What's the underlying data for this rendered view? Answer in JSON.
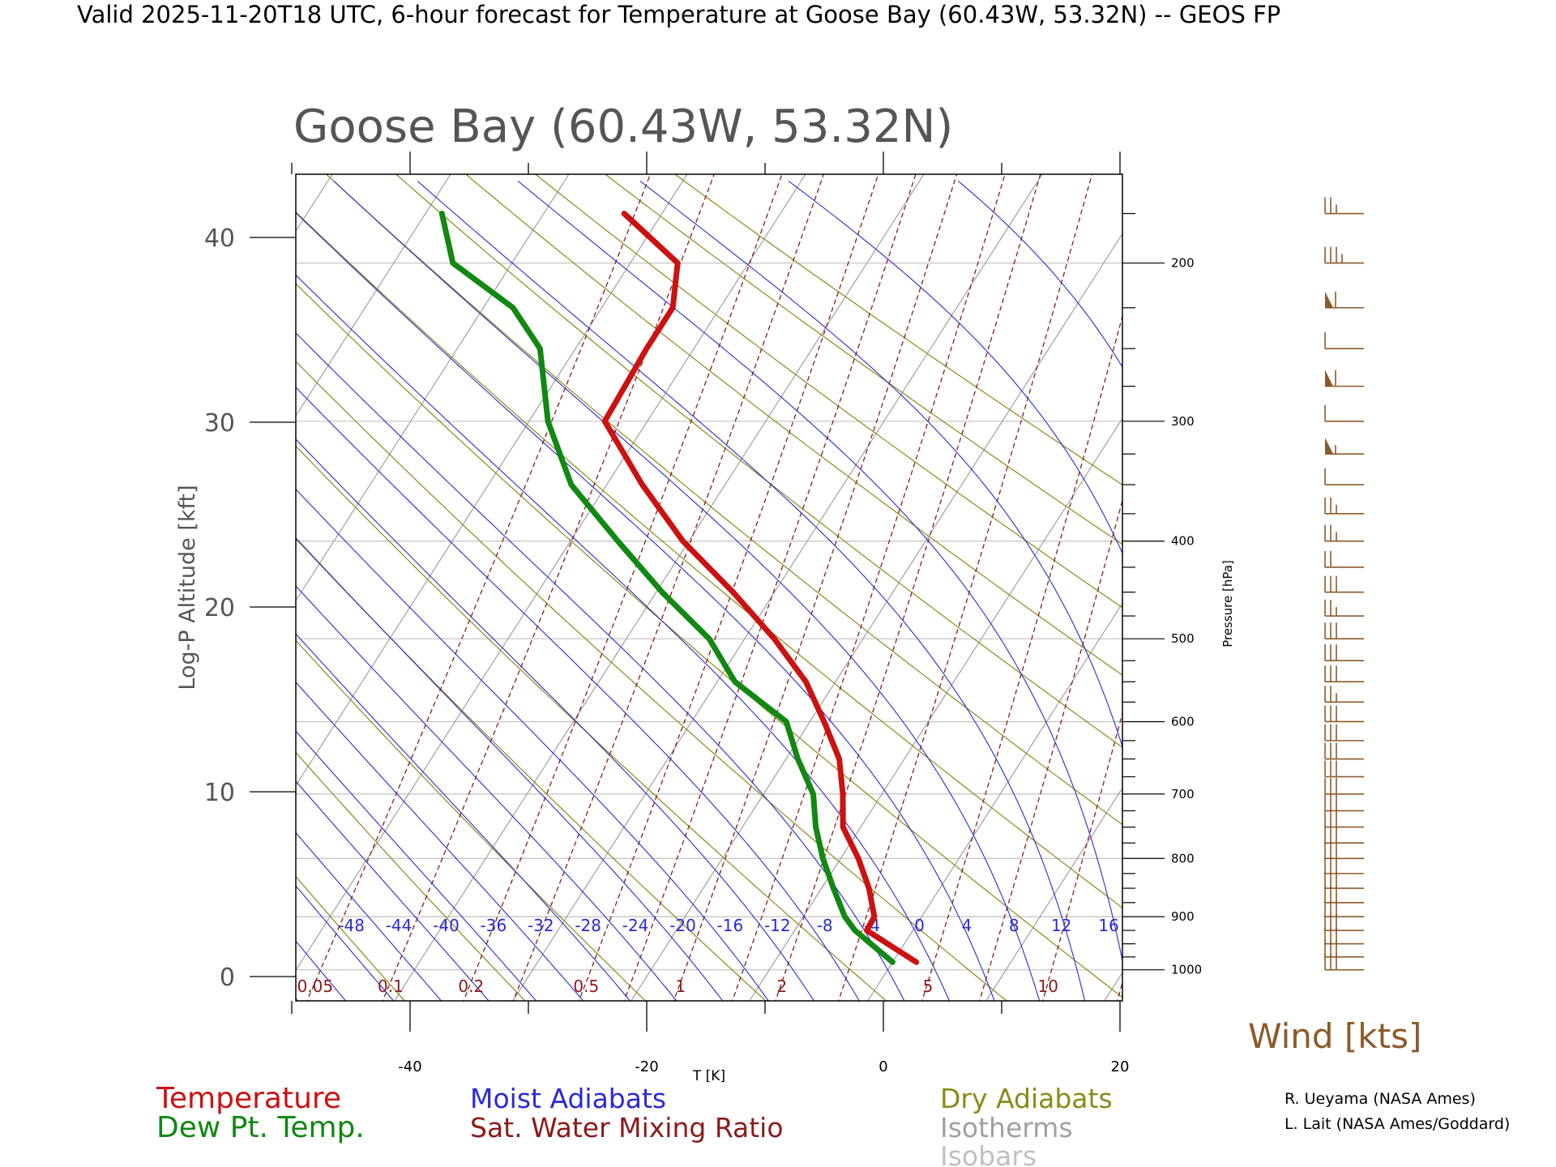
{
  "header": {
    "valid_title": "Valid 2025-11-20T18 UTC, 6-hour forecast for Temperature at Goose Bay (60.43W, 53.32N) -- GEOS FP",
    "station_title": "Goose Bay (60.43W, 53.32N)"
  },
  "colors": {
    "temperature": "#cc1111",
    "dewpoint": "#118811",
    "moist_adiabat": "#2a2ad6",
    "mixing_ratio": "#8b1a1a",
    "dry_adiabat": "#8a8a1a",
    "isotherm": "#a0a0a0",
    "isobar": "#c0c0c0",
    "wind": "#8b5a2b"
  },
  "legend": {
    "temperature": "Temperature",
    "dewpoint": "Dew Pt. Temp.",
    "moist_adiabats": "Moist Adiabats",
    "mixing_ratio": "Sat. Water Mixing Ratio",
    "dry_adiabats": "Dry Adiabats",
    "isotherms": "Isotherms",
    "isobars": "Isobars",
    "wind": "Wind [kts]"
  },
  "credits": {
    "line1": "R. Ueyama (NASA Ames)",
    "line2": "L. Lait (NASA Ames/Goddard)"
  },
  "chart_data": {
    "type": "line",
    "subtype": "skew-t log-p",
    "title": "Goose Bay (60.43W, 53.32N)",
    "xlabel": "T [K]",
    "ylabel": "Log-P Altitude [kft]",
    "y2label": "Pressure [hPa]",
    "x_ticks": [
      -40,
      -20,
      0,
      20
    ],
    "y_ticks": [
      0,
      10,
      20,
      30,
      40
    ],
    "xlim_at_surface": [
      -50,
      20
    ],
    "ylim_kft": [
      -1.2,
      43.8
    ],
    "skew_degC_per_kft": 1.0,
    "pressure_ticks_hpa": [
      1000,
      900,
      800,
      700,
      600,
      500,
      400,
      300,
      200
    ],
    "moist_adiabat_labels": [
      "-48",
      "-44",
      "-40",
      "-36",
      "-32",
      "-28",
      "-24",
      "-20",
      "-16",
      "-12",
      "-8",
      "-4",
      "0",
      "4",
      "8",
      "12",
      "16"
    ],
    "mixing_ratio_labels": [
      "0.05",
      "0.1",
      "0.2",
      "0.5",
      "1",
      "2",
      "5",
      "10"
    ],
    "series": [
      {
        "name": "Temperature",
        "points_p_hpa": [
          985,
          925,
          900,
          850,
          800,
          750,
          700,
          650,
          600,
          550,
          500,
          450,
          400,
          350,
          300,
          250,
          225,
          200,
          175
        ],
        "points_t_c": [
          2.0,
          -3.9,
          -4.0,
          -6.0,
          -8.5,
          -11.5,
          -13.3,
          -15.5,
          -18.8,
          -22.5,
          -27.5,
          -33.5,
          -40.5,
          -47.0,
          -53.6,
          -54.0,
          -54.0,
          -56.0,
          -63.2
        ]
      },
      {
        "name": "Dew Pt. Temp.",
        "points_p_hpa": [
          985,
          925,
          900,
          850,
          800,
          750,
          700,
          650,
          600,
          550,
          500,
          450,
          400,
          350,
          300,
          250,
          225,
          200,
          175
        ],
        "points_t_c": [
          0.0,
          -4.9,
          -6.5,
          -9.0,
          -11.5,
          -13.8,
          -15.8,
          -19.0,
          -22.0,
          -28.5,
          -33.0,
          -39.5,
          -46.0,
          -53.0,
          -58.4,
          -63.0,
          -67.5,
          -75.0,
          -78.6
        ]
      }
    ],
    "wind_barbs": [
      {
        "p_hpa": 175,
        "speed_kt": 25
      },
      {
        "p_hpa": 200,
        "speed_kt": 35
      },
      {
        "p_hpa": 225,
        "speed_kt": 60
      },
      {
        "p_hpa": 250,
        "speed_kt": 10
      },
      {
        "p_hpa": 275,
        "speed_kt": 60
      },
      {
        "p_hpa": 300,
        "speed_kt": 10
      },
      {
        "p_hpa": 325,
        "speed_kt": 55
      },
      {
        "p_hpa": 350,
        "speed_kt": 10
      },
      {
        "p_hpa": 375,
        "speed_kt": 25
      },
      {
        "p_hpa": 400,
        "speed_kt": 25
      },
      {
        "p_hpa": 425,
        "speed_kt": 20
      },
      {
        "p_hpa": 450,
        "speed_kt": 30
      },
      {
        "p_hpa": 475,
        "speed_kt": 25
      },
      {
        "p_hpa": 500,
        "speed_kt": 30
      },
      {
        "p_hpa": 525,
        "speed_kt": 30
      },
      {
        "p_hpa": 550,
        "speed_kt": 30
      },
      {
        "p_hpa": 575,
        "speed_kt": 25
      },
      {
        "p_hpa": 600,
        "speed_kt": 30
      },
      {
        "p_hpa": 625,
        "speed_kt": 30
      },
      {
        "p_hpa": 650,
        "speed_kt": 30
      },
      {
        "p_hpa": 675,
        "speed_kt": 30
      },
      {
        "p_hpa": 700,
        "speed_kt": 30
      },
      {
        "p_hpa": 725,
        "speed_kt": 30
      },
      {
        "p_hpa": 750,
        "speed_kt": 30
      },
      {
        "p_hpa": 775,
        "speed_kt": 30
      },
      {
        "p_hpa": 800,
        "speed_kt": 30
      },
      {
        "p_hpa": 825,
        "speed_kt": 30
      },
      {
        "p_hpa": 850,
        "speed_kt": 30
      },
      {
        "p_hpa": 875,
        "speed_kt": 30
      },
      {
        "p_hpa": 900,
        "speed_kt": 30
      },
      {
        "p_hpa": 925,
        "speed_kt": 30
      },
      {
        "p_hpa": 950,
        "speed_kt": 30
      },
      {
        "p_hpa": 975,
        "speed_kt": 30
      },
      {
        "p_hpa": 1000,
        "speed_kt": 30
      }
    ]
  }
}
